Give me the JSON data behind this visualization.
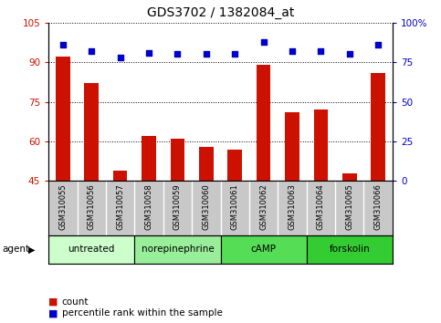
{
  "title": "GDS3702 / 1382084_at",
  "samples": [
    "GSM310055",
    "GSM310056",
    "GSM310057",
    "GSM310058",
    "GSM310059",
    "GSM310060",
    "GSM310061",
    "GSM310062",
    "GSM310063",
    "GSM310064",
    "GSM310065",
    "GSM310066"
  ],
  "counts": [
    92,
    82,
    49,
    62,
    61,
    58,
    57,
    89,
    71,
    72,
    48,
    86
  ],
  "percentiles": [
    86,
    82,
    78,
    81,
    80,
    80,
    80,
    88,
    82,
    82,
    80,
    86
  ],
  "bar_color": "#cc1100",
  "dot_color": "#0000cc",
  "ylim_left": [
    45,
    105
  ],
  "ylim_right": [
    0,
    100
  ],
  "yticks_left": [
    45,
    60,
    75,
    90,
    105
  ],
  "yticks_right": [
    0,
    25,
    50,
    75,
    100
  ],
  "ytick_labels_left": [
    "45",
    "60",
    "75",
    "90",
    "105"
  ],
  "ytick_labels_right": [
    "0",
    "25",
    "50",
    "75",
    "100%"
  ],
  "groups": [
    {
      "label": "untreated",
      "start": 0,
      "end": 3,
      "color": "#ccffcc"
    },
    {
      "label": "norepinephrine",
      "start": 3,
      "end": 6,
      "color": "#99ee99"
    },
    {
      "label": "cAMP",
      "start": 6,
      "end": 9,
      "color": "#55dd55"
    },
    {
      "label": "forskolin",
      "start": 9,
      "end": 12,
      "color": "#33cc33"
    }
  ],
  "legend_count_label": "count",
  "legend_pct_label": "percentile rank within the sample",
  "agent_label": "agent",
  "bg_color": "#ffffff",
  "tick_area_color": "#c8c8c8"
}
